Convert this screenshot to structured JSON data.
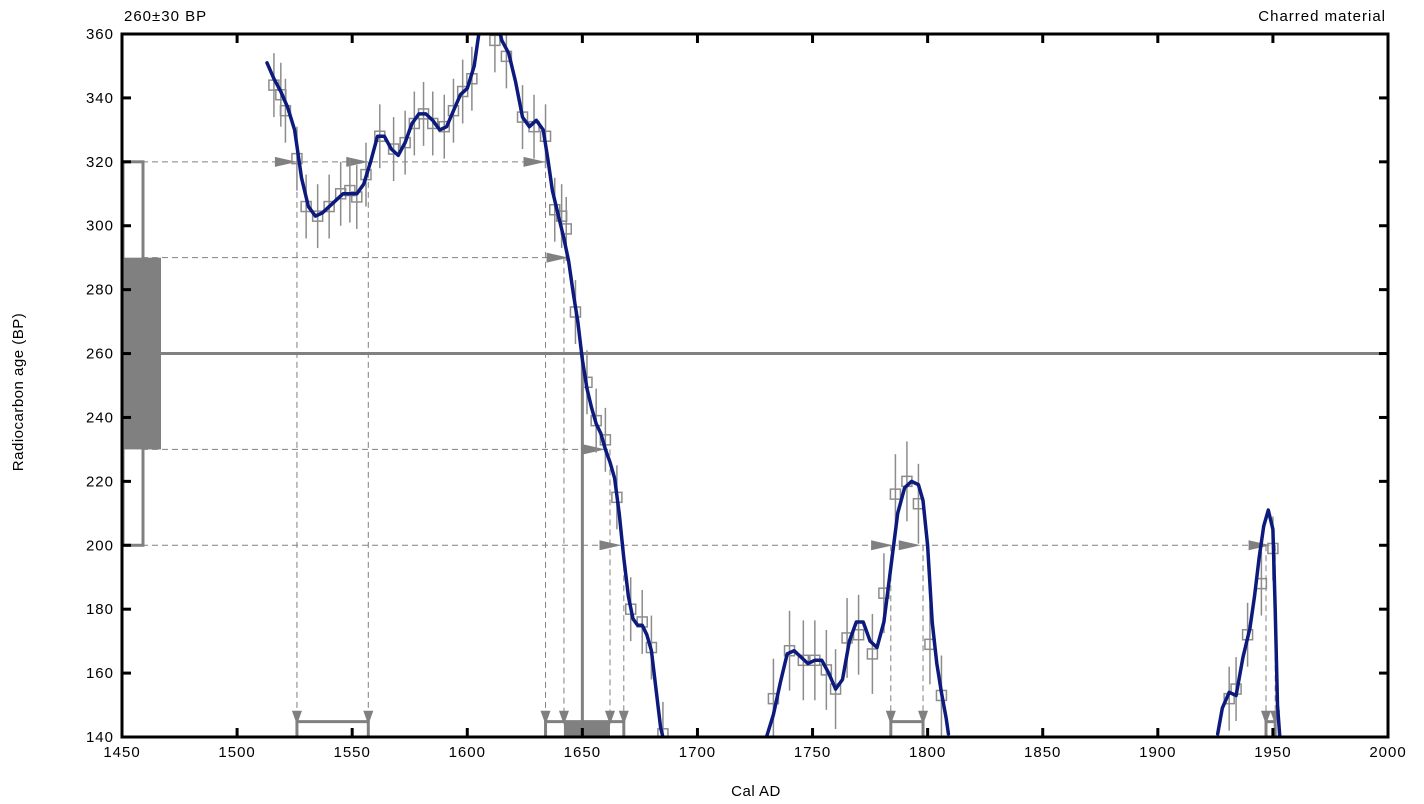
{
  "header": {
    "left_label": "260±30 BP",
    "right_label": "Charred material"
  },
  "chart_data": {
    "type": "line",
    "xlabel": "Cal AD",
    "ylabel": "Radiocarbon age (BP)",
    "xlim": [
      1450,
      2000
    ],
    "ylim": [
      140,
      360
    ],
    "x_ticks": [
      1450,
      1500,
      1550,
      1600,
      1650,
      1700,
      1750,
      1800,
      1850,
      1900,
      1950,
      2000
    ],
    "y_ticks": [
      140,
      160,
      180,
      200,
      220,
      240,
      260,
      280,
      300,
      320,
      340,
      360
    ],
    "colors": {
      "curve": "#0c1a7e",
      "annotation": "#808080",
      "frame": "#000000"
    },
    "sample": {
      "age": 260,
      "error": 30,
      "one_sigma": [
        230,
        290
      ],
      "two_sigma": [
        200,
        320
      ]
    },
    "calibration_curve": {
      "name": "calibration curve",
      "segments": [
        [
          [
            1513,
            351
          ],
          [
            1516,
            346
          ],
          [
            1519,
            342
          ],
          [
            1522,
            337
          ],
          [
            1525,
            330
          ],
          [
            1528,
            315
          ],
          [
            1531,
            306
          ],
          [
            1534,
            303
          ],
          [
            1537,
            304
          ],
          [
            1540,
            306
          ],
          [
            1543,
            308
          ],
          [
            1546,
            310
          ],
          [
            1549,
            310
          ],
          [
            1552,
            310
          ],
          [
            1555,
            313
          ],
          [
            1558,
            320
          ],
          [
            1561,
            328
          ],
          [
            1564,
            328
          ],
          [
            1567,
            324
          ],
          [
            1570,
            322
          ],
          [
            1573,
            326
          ],
          [
            1576,
            332
          ],
          [
            1579,
            335
          ],
          [
            1582,
            335
          ],
          [
            1585,
            333
          ],
          [
            1588,
            330
          ],
          [
            1591,
            331
          ],
          [
            1594,
            336
          ],
          [
            1597,
            341
          ],
          [
            1600,
            343
          ],
          [
            1603,
            350
          ],
          [
            1606,
            365
          ],
          [
            1609,
            371
          ],
          [
            1612,
            368
          ],
          [
            1615,
            358
          ],
          [
            1618,
            354
          ],
          [
            1621,
            345
          ],
          [
            1624,
            334
          ],
          [
            1627,
            331
          ],
          [
            1630,
            333
          ],
          [
            1633,
            330
          ],
          [
            1635,
            321
          ],
          [
            1637,
            311
          ],
          [
            1640,
            302
          ],
          [
            1642,
            296
          ],
          [
            1644,
            289
          ],
          [
            1646,
            279
          ],
          [
            1648,
            270
          ],
          [
            1650,
            258
          ],
          [
            1652,
            249
          ],
          [
            1654,
            243
          ],
          [
            1656,
            238
          ],
          [
            1658,
            235
          ],
          [
            1660,
            230
          ],
          [
            1662,
            226
          ],
          [
            1664,
            221
          ],
          [
            1666,
            210
          ],
          [
            1668,
            196
          ],
          [
            1670,
            184
          ],
          [
            1672,
            177
          ],
          [
            1674,
            175
          ],
          [
            1676,
            175
          ],
          [
            1678,
            172
          ],
          [
            1680,
            167
          ],
          [
            1682,
            155
          ],
          [
            1684,
            143
          ],
          [
            1685,
            140
          ]
        ],
        [
          [
            1730,
            140
          ],
          [
            1733,
            147
          ],
          [
            1736,
            157
          ],
          [
            1739,
            166
          ],
          [
            1742,
            167
          ],
          [
            1745,
            165
          ],
          [
            1748,
            163
          ],
          [
            1751,
            164
          ],
          [
            1754,
            164
          ],
          [
            1757,
            160
          ],
          [
            1760,
            155
          ],
          [
            1763,
            158
          ],
          [
            1766,
            170
          ],
          [
            1769,
            176
          ],
          [
            1772,
            176
          ],
          [
            1775,
            170
          ],
          [
            1778,
            168
          ],
          [
            1781,
            176
          ],
          [
            1784,
            193
          ],
          [
            1787,
            210
          ],
          [
            1790,
            218
          ],
          [
            1793,
            220
          ],
          [
            1796,
            219
          ],
          [
            1798,
            214
          ],
          [
            1800,
            200
          ],
          [
            1802,
            176
          ],
          [
            1804,
            163
          ],
          [
            1806,
            154
          ],
          [
            1808,
            146
          ],
          [
            1809,
            141
          ]
        ],
        [
          [
            1926,
            141
          ],
          [
            1928,
            149
          ],
          [
            1931,
            154
          ],
          [
            1934,
            153
          ],
          [
            1937,
            165
          ],
          [
            1940,
            174
          ],
          [
            1942,
            184
          ],
          [
            1944,
            196
          ],
          [
            1946,
            206
          ],
          [
            1948,
            211
          ],
          [
            1950,
            205
          ],
          [
            1951,
            180
          ],
          [
            1952,
            150
          ],
          [
            1953,
            140
          ]
        ]
      ]
    },
    "data_points": [
      {
        "x": 1516,
        "y": 344,
        "e": 4
      },
      {
        "x": 1519,
        "y": 341,
        "e": 4
      },
      {
        "x": 1521,
        "y": 336,
        "e": 4
      },
      {
        "x": 1526,
        "y": 321,
        "e": 4
      },
      {
        "x": 1530,
        "y": 306,
        "e": 4
      },
      {
        "x": 1535,
        "y": 303,
        "e": 4
      },
      {
        "x": 1540,
        "y": 306,
        "e": 4
      },
      {
        "x": 1545,
        "y": 310,
        "e": 4
      },
      {
        "x": 1549,
        "y": 311,
        "e": 4
      },
      {
        "x": 1552,
        "y": 309,
        "e": 4
      },
      {
        "x": 1556,
        "y": 316,
        "e": 4
      },
      {
        "x": 1562,
        "y": 328,
        "e": 4
      },
      {
        "x": 1568,
        "y": 324,
        "e": 4
      },
      {
        "x": 1573,
        "y": 326,
        "e": 4
      },
      {
        "x": 1577,
        "y": 332,
        "e": 4
      },
      {
        "x": 1581,
        "y": 335,
        "e": 4
      },
      {
        "x": 1585,
        "y": 332,
        "e": 4
      },
      {
        "x": 1590,
        "y": 331,
        "e": 4
      },
      {
        "x": 1594,
        "y": 336,
        "e": 4
      },
      {
        "x": 1598,
        "y": 342,
        "e": 4
      },
      {
        "x": 1602,
        "y": 346,
        "e": 4
      },
      {
        "x": 1612,
        "y": 358,
        "e": 4
      },
      {
        "x": 1617,
        "y": 353,
        "e": 4
      },
      {
        "x": 1624,
        "y": 334,
        "e": 4
      },
      {
        "x": 1629,
        "y": 331,
        "e": 4
      },
      {
        "x": 1634,
        "y": 328,
        "e": 4
      },
      {
        "x": 1638,
        "y": 305,
        "e": 4
      },
      {
        "x": 1641,
        "y": 303,
        "e": 4
      },
      {
        "x": 1643,
        "y": 299,
        "e": 4
      },
      {
        "x": 1647,
        "y": 273,
        "e": 4
      },
      {
        "x": 1652,
        "y": 251,
        "e": 4
      },
      {
        "x": 1656,
        "y": 239,
        "e": 4
      },
      {
        "x": 1660,
        "y": 233,
        "e": 4
      },
      {
        "x": 1665,
        "y": 215,
        "e": 4
      },
      {
        "x": 1671,
        "y": 180,
        "e": 4
      },
      {
        "x": 1676,
        "y": 176,
        "e": 4
      },
      {
        "x": 1680,
        "y": 168,
        "e": 4
      },
      {
        "x": 1685,
        "y": 141,
        "e": 4
      },
      {
        "x": 1733,
        "y": 152,
        "e": 5
      },
      {
        "x": 1740,
        "y": 167,
        "e": 5
      },
      {
        "x": 1746,
        "y": 164,
        "e": 5
      },
      {
        "x": 1751,
        "y": 164,
        "e": 5
      },
      {
        "x": 1756,
        "y": 161,
        "e": 5
      },
      {
        "x": 1760,
        "y": 155,
        "e": 5
      },
      {
        "x": 1765,
        "y": 171,
        "e": 5
      },
      {
        "x": 1770,
        "y": 172,
        "e": 5
      },
      {
        "x": 1776,
        "y": 166,
        "e": 5
      },
      {
        "x": 1781,
        "y": 185,
        "e": 5
      },
      {
        "x": 1786,
        "y": 216,
        "e": 5
      },
      {
        "x": 1791,
        "y": 220,
        "e": 5
      },
      {
        "x": 1796,
        "y": 213,
        "e": 5
      },
      {
        "x": 1801,
        "y": 169,
        "e": 5
      },
      {
        "x": 1806,
        "y": 153,
        "e": 5
      },
      {
        "x": 1931,
        "y": 152,
        "e": 4
      },
      {
        "x": 1934,
        "y": 155,
        "e": 4
      },
      {
        "x": 1939,
        "y": 172,
        "e": 4
      },
      {
        "x": 1945,
        "y": 188,
        "e": 4
      },
      {
        "x": 1950,
        "y": 199,
        "e": 4
      }
    ],
    "horizontal_guides": [
      {
        "y": 320,
        "to_x": 1635,
        "arrows_at": [
          1526,
          1557,
          1634
        ]
      },
      {
        "y": 290,
        "to_x": 1645,
        "arrows_at": [
          1644
        ]
      },
      {
        "y": 230,
        "to_x": 1662,
        "arrows_at": [
          1660
        ]
      },
      {
        "y": 200,
        "to_x": 1951,
        "arrows_at": [
          1667,
          1785,
          1797,
          1949
        ]
      }
    ],
    "vertical_drops": [
      1526,
      1557,
      1634,
      1642,
      1662,
      1668,
      1784,
      1798,
      1947,
      1951
    ],
    "calibrated_ranges": {
      "one_sigma": [
        [
          1642,
          1662
        ]
      ],
      "two_sigma": [
        [
          1526,
          1557
        ],
        [
          1634,
          1668
        ],
        [
          1784,
          1798
        ],
        [
          1947,
          1951
        ]
      ]
    },
    "median": 1650
  }
}
